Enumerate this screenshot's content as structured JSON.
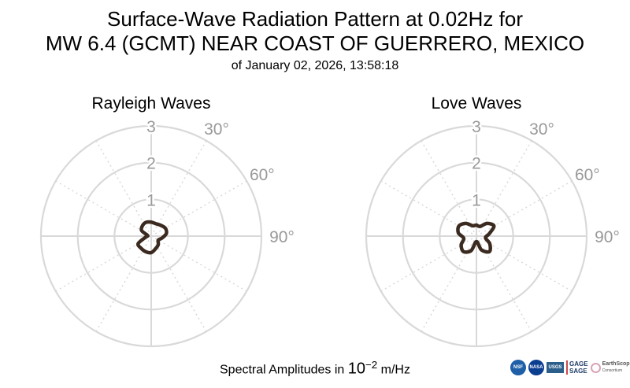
{
  "title": {
    "line1": "Surface-Wave Radiation Pattern at 0.02Hz for",
    "line2": "MW 6.4 (GCMT) NEAR COAST OF GUERRERO, MEXICO",
    "line3": "of January 02, 2026, 13:58:18"
  },
  "footer": {
    "prefix": "Spectral Amplitudes in ",
    "exponent_base": "10",
    "exponent": "−2",
    "unit": " m/Hz"
  },
  "logos": {
    "nsf": "NSF",
    "nasa": "NASA",
    "usgs": "USGS",
    "gage": "GAGE",
    "sage": "SAGE",
    "earthscope": "EarthScope",
    "earthscope_sub": "Consortium"
  },
  "colors": {
    "pattern": "#3b2a20",
    "grid": "#d9d9d9",
    "labels": "#999999"
  },
  "chart_data": [
    {
      "type": "polar",
      "title": "Rayleigh Waves",
      "r_ticks": [
        "1",
        "2",
        "3"
      ],
      "r_range": [
        0,
        3
      ],
      "theta_labels": [
        "30°",
        "60°",
        "90°"
      ],
      "theta_zero": "north",
      "theta_direction": "clockwise",
      "grid": true,
      "series": [
        {
          "theta_deg": [
            0,
            20,
            40,
            60,
            80,
            100,
            120,
            140,
            160,
            180,
            200,
            220,
            240,
            260,
            280,
            300,
            320,
            340
          ],
          "r": [
            0.38,
            0.36,
            0.39,
            0.44,
            0.42,
            0.3,
            0.22,
            0.3,
            0.36,
            0.45,
            0.45,
            0.43,
            0.41,
            0.15,
            0.1,
            0.3,
            0.37,
            0.4
          ]
        }
      ]
    },
    {
      "type": "polar",
      "title": "Love Waves",
      "r_ticks": [
        "1",
        "2",
        "3"
      ],
      "r_range": [
        0,
        3
      ],
      "theta_labels": [
        "30°",
        "60°",
        "90°"
      ],
      "theta_zero": "north",
      "theta_direction": "clockwise",
      "grid": true,
      "series": [
        {
          "theta_deg": [
            0,
            20,
            40,
            60,
            80,
            100,
            120,
            140,
            160,
            180,
            200,
            220,
            240,
            260,
            280,
            300,
            320,
            340
          ],
          "r": [
            0.3,
            0.28,
            0.45,
            0.55,
            0.35,
            0.25,
            0.42,
            0.55,
            0.4,
            0.15,
            0.42,
            0.55,
            0.48,
            0.35,
            0.5,
            0.55,
            0.45,
            0.3
          ]
        }
      ]
    }
  ]
}
